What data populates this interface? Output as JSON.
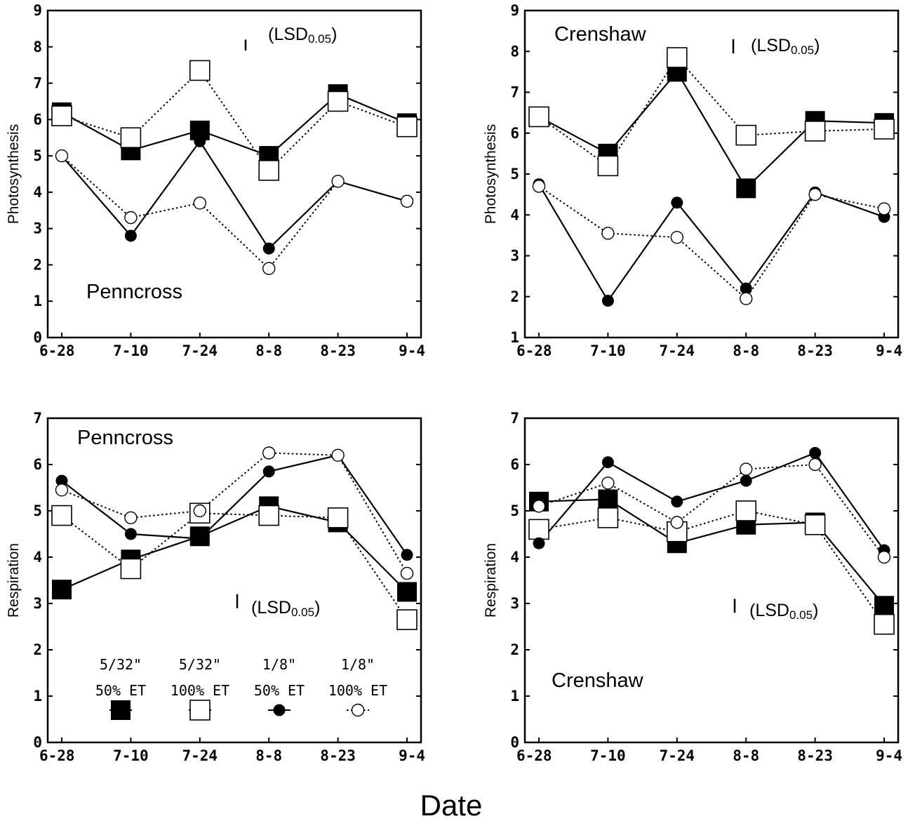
{
  "figure": {
    "xlabel": "Date"
  },
  "legend": {
    "entries": [
      {
        "line1": "5/32\"",
        "line2": "50% ET",
        "marker": "filled-square",
        "dash": false
      },
      {
        "line1": "5/32\"",
        "line2": "100% ET",
        "marker": "open-square",
        "dash": true
      },
      {
        "line1": "1/8\"",
        "line2": "50% ET",
        "marker": "filled-circle",
        "dash": false
      },
      {
        "line1": "1/8\"",
        "line2": "100% ET",
        "marker": "open-circle",
        "dash": true
      }
    ]
  },
  "chart_data": [
    {
      "id": "photo-penncross",
      "type": "line",
      "cultivar": "Penncross",
      "ylabel": "Photosynthesis",
      "categories": [
        "6-28",
        "7-10",
        "7-24",
        "8-8",
        "8-23",
        "9-4"
      ],
      "ylim": [
        0,
        9
      ],
      "yticks": [
        0,
        1,
        2,
        3,
        4,
        5,
        6,
        7,
        8,
        9
      ],
      "lsd_label": "(LSD",
      "lsd_sub": "0.05",
      "lsd_close": ")",
      "lsd_bar": [
        8.2,
        7.9
      ],
      "series": [
        {
          "marker": "filled-square",
          "dash": false,
          "values": [
            6.2,
            5.15,
            5.7,
            5.0,
            6.7,
            5.9
          ]
        },
        {
          "marker": "open-square",
          "dash": true,
          "values": [
            6.1,
            5.5,
            7.35,
            4.6,
            6.5,
            5.8
          ]
        },
        {
          "marker": "filled-circle",
          "dash": false,
          "values": [
            5.0,
            2.8,
            5.4,
            2.45,
            4.3,
            3.75
          ]
        },
        {
          "marker": "open-circle",
          "dash": true,
          "values": [
            5.0,
            3.3,
            3.7,
            1.9,
            4.3,
            3.75
          ]
        }
      ]
    },
    {
      "id": "photo-crenshaw",
      "type": "line",
      "cultivar": "Crenshaw",
      "ylabel": "Photosynthesis",
      "categories": [
        "6-28",
        "7-10",
        "7-24",
        "8-8",
        "8-23",
        "9-4"
      ],
      "ylim": [
        1,
        9
      ],
      "yticks": [
        1,
        2,
        3,
        4,
        5,
        6,
        7,
        8,
        9
      ],
      "lsd_label": "(LSD",
      "lsd_sub": "0.05",
      "lsd_close": ")",
      "lsd_bar": [
        8.3,
        7.95
      ],
      "series": [
        {
          "marker": "filled-square",
          "dash": false,
          "values": [
            6.4,
            5.5,
            7.5,
            4.65,
            6.3,
            6.25
          ]
        },
        {
          "marker": "open-square",
          "dash": true,
          "values": [
            6.4,
            5.2,
            7.85,
            5.95,
            6.05,
            6.1
          ]
        },
        {
          "marker": "filled-circle",
          "dash": false,
          "values": [
            4.75,
            1.9,
            4.3,
            2.2,
            4.55,
            3.95
          ]
        },
        {
          "marker": "open-circle",
          "dash": true,
          "values": [
            4.7,
            3.55,
            3.45,
            1.95,
            4.5,
            4.15
          ]
        }
      ]
    },
    {
      "id": "resp-penncross",
      "type": "line",
      "cultivar": "Penncross",
      "ylabel": "Respiration",
      "categories": [
        "6-28",
        "7-10",
        "7-24",
        "8-8",
        "8-23",
        "9-4"
      ],
      "ylim": [
        0,
        7
      ],
      "yticks": [
        0,
        1,
        2,
        3,
        4,
        5,
        6,
        7
      ],
      "lsd_label": "(LSD",
      "lsd_sub": "0.05",
      "lsd_close": ")",
      "lsd_bar": [
        3.2,
        2.9
      ],
      "series": [
        {
          "marker": "filled-square",
          "dash": false,
          "values": [
            3.3,
            3.95,
            4.45,
            5.1,
            4.75,
            3.25
          ]
        },
        {
          "marker": "open-square",
          "dash": true,
          "values": [
            4.9,
            3.75,
            4.95,
            4.9,
            4.85,
            2.65
          ]
        },
        {
          "marker": "filled-circle",
          "dash": false,
          "values": [
            5.65,
            4.5,
            4.4,
            5.85,
            6.2,
            4.05
          ]
        },
        {
          "marker": "open-circle",
          "dash": true,
          "values": [
            5.45,
            4.85,
            5.0,
            6.25,
            6.2,
            3.65
          ]
        }
      ]
    },
    {
      "id": "resp-crenshaw",
      "type": "line",
      "cultivar": "Crenshaw",
      "ylabel": "Respiration",
      "categories": [
        "6-28",
        "7-10",
        "7-24",
        "8-8",
        "8-23",
        "9-4"
      ],
      "ylim": [
        0,
        7
      ],
      "yticks": [
        0,
        1,
        2,
        3,
        4,
        5,
        6,
        7
      ],
      "lsd_label": "(LSD",
      "lsd_sub": "0.05",
      "lsd_close": ")",
      "lsd_bar": [
        3.1,
        2.8
      ],
      "series": [
        {
          "marker": "filled-square",
          "dash": false,
          "values": [
            5.2,
            5.25,
            4.3,
            4.7,
            4.75,
            2.95
          ]
        },
        {
          "marker": "open-square",
          "dash": true,
          "values": [
            4.6,
            4.85,
            4.55,
            5.0,
            4.7,
            2.55
          ]
        },
        {
          "marker": "filled-circle",
          "dash": false,
          "values": [
            4.3,
            6.05,
            5.2,
            5.65,
            6.25,
            4.15
          ]
        },
        {
          "marker": "open-circle",
          "dash": true,
          "values": [
            5.1,
            5.6,
            4.75,
            5.9,
            6.0,
            4.0
          ]
        }
      ]
    }
  ]
}
